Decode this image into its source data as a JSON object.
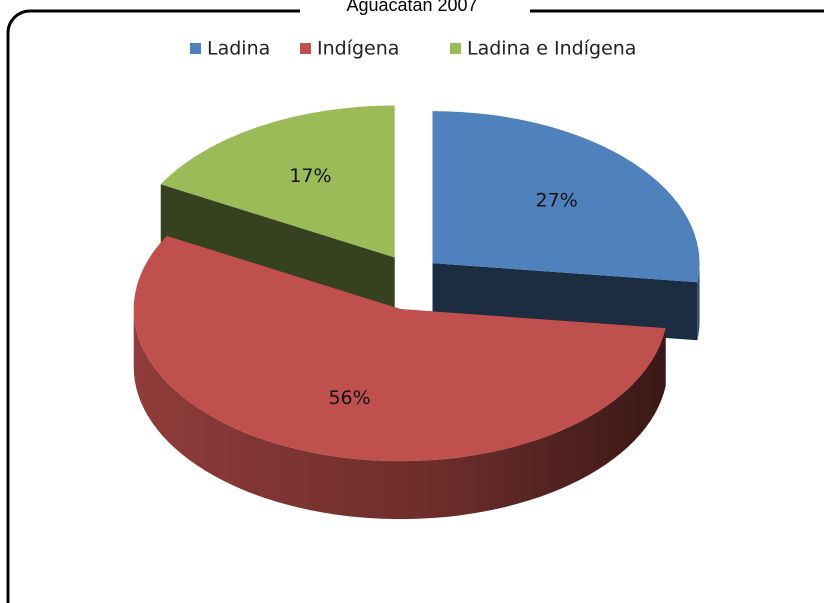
{
  "chart_data": {
    "type": "pie",
    "title": "Aguacatán 2007",
    "categories": [
      "Ladina",
      "Indígena",
      "Ladina e Indígena"
    ],
    "values": [
      27,
      56,
      17
    ],
    "value_labels": [
      "27%",
      "56%",
      "17%"
    ],
    "colors": [
      "#4f81bd",
      "#c0504d",
      "#9bbb59"
    ],
    "legend": "top"
  }
}
